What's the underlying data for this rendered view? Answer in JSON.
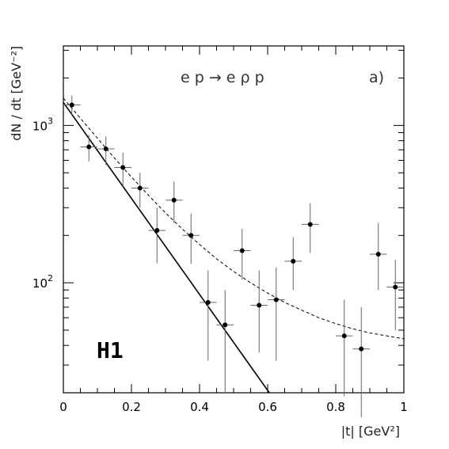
{
  "chart_data": {
    "type": "scatter",
    "title": "",
    "xlabel": "|t|  [GeV²]",
    "ylabel": "dN / dt  [GeV⁻²]",
    "xlim": [
      0,
      1
    ],
    "ylim": [
      20,
      3200
    ],
    "yscale": "log",
    "grid": false,
    "x_ticks": [
      0,
      0.2,
      0.4,
      0.6,
      0.8,
      1
    ],
    "x_tick_labels": [
      "0",
      "0.2",
      "0.4",
      "0.6",
      "0.8",
      "1"
    ],
    "y_ticks": [
      100,
      1000
    ],
    "annotations": [
      {
        "text": "e p → e ρ p"
      },
      {
        "text": "a)"
      },
      {
        "text": "H1"
      }
    ],
    "series": [
      {
        "style": "points-with-error-bars",
        "x": [
          0.025,
          0.075,
          0.125,
          0.175,
          0.225,
          0.275,
          0.325,
          0.375,
          0.425,
          0.475,
          0.525,
          0.575,
          0.625,
          0.675,
          0.725,
          0.825,
          0.875,
          0.925,
          0.975
        ],
        "y": [
          1350,
          730,
          710,
          540,
          400,
          215,
          335,
          200,
          75,
          54,
          160,
          72,
          78,
          137,
          235,
          46,
          38,
          152,
          94
        ],
        "y_low": [
          1150,
          590,
          560,
          410,
          300,
          133,
          240,
          132,
          32,
          20,
          105,
          36,
          32,
          90,
          155,
          19,
          14,
          90,
          50
        ],
        "y_high": [
          1550,
          870,
          850,
          670,
          500,
          300,
          440,
          275,
          120,
          90,
          220,
          120,
          125,
          195,
          320,
          78,
          70,
          240,
          140
        ],
        "x_err": 0.025
      },
      {
        "style": "solid-line",
        "x": [
          0,
          0.605
        ],
        "y": [
          1400,
          20
        ]
      },
      {
        "style": "dashed-line",
        "x": [
          0,
          0.05,
          0.1,
          0.15,
          0.2,
          0.25,
          0.3,
          0.35,
          0.4,
          0.45,
          0.5,
          0.55,
          0.6,
          0.65,
          0.7,
          0.75,
          0.8,
          0.85,
          0.9,
          0.95,
          1.0
        ],
        "y": [
          1490,
          1110,
          830,
          620,
          470,
          360,
          278,
          219,
          175,
          142,
          118,
          100,
          86,
          75,
          67,
          60,
          55,
          51,
          48,
          46,
          44
        ]
      }
    ]
  }
}
